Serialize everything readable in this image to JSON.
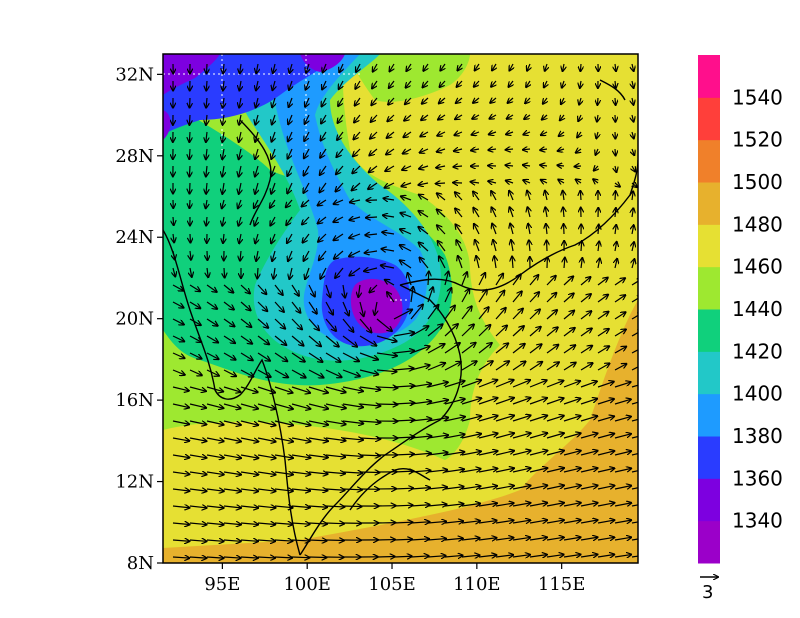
{
  "map": {
    "lat_labels": [
      "32N",
      "28N",
      "24N",
      "20N",
      "16N",
      "12N",
      "8N"
    ],
    "lat_values": [
      32,
      28,
      24,
      20,
      16,
      12,
      8
    ],
    "lon_labels": [
      "95E",
      "100E",
      "105E",
      "110E",
      "115E"
    ],
    "lon_values": [
      95,
      100,
      105,
      110,
      115
    ],
    "extent": {
      "lon_min": 91.5,
      "lon_max": 119.5,
      "lat_min": 8,
      "lat_max": 33
    }
  },
  "colorbar": {
    "labels": [
      "1340",
      "1360",
      "1380",
      "1400",
      "1420",
      "1440",
      "1460",
      "1480",
      "1500",
      "1520",
      "1540"
    ],
    "colors": [
      "#9b00c9",
      "#7d00e0",
      "#2a3cff",
      "#1e9bff",
      "#22c8c8",
      "#10d07c",
      "#9ee830",
      "#e6e033",
      "#e7b12d",
      "#f0802a",
      "#ff3f3a",
      "#ff0f8c"
    ]
  },
  "reference_vector": {
    "label": "3"
  }
}
